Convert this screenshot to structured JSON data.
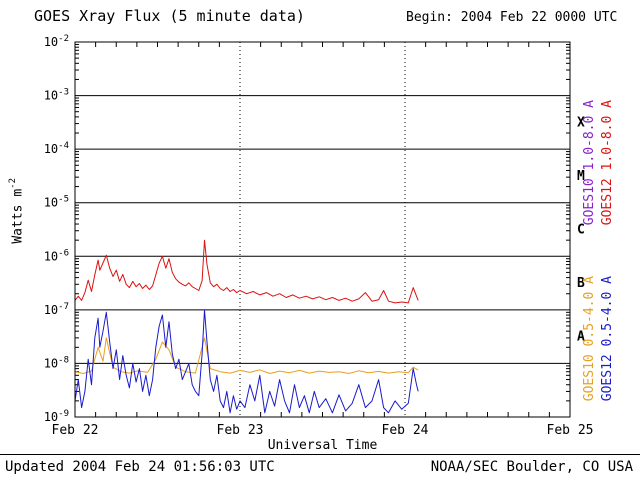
{
  "header": {
    "title": "GOES Xray Flux (5 minute data)",
    "begin_label": "Begin:  2004 Feb 22 0000 UTC"
  },
  "footer": {
    "updated": "Updated 2004 Feb 24 01:56:03 UTC",
    "source": "NOAA/SEC Boulder, CO USA"
  },
  "chart_data": {
    "type": "line",
    "title": "GOES Xray Flux (5 minute data)",
    "xlabel": "Universal Time",
    "ylabel": {
      "base": "Watts m",
      "exponent": "-2"
    },
    "x_span_days": 3,
    "x_ticks": [
      {
        "day": 0,
        "label": "Feb 22"
      },
      {
        "day": 1,
        "label": "Feb 23"
      },
      {
        "day": 2,
        "label": "Feb 24"
      },
      {
        "day": 3,
        "label": "Feb 25"
      }
    ],
    "y_axis": {
      "base": "10",
      "exponents": [
        -2,
        -3,
        -4,
        -5,
        -6,
        -7,
        -8,
        -9
      ],
      "scale": "log"
    },
    "ylim": [
      1e-09,
      0.01
    ],
    "grid": {
      "horizontal": "solid-per-decade",
      "vertical": "dotted-per-day"
    },
    "flare_classes": [
      {
        "label": "X",
        "mid_exp": -3.5
      },
      {
        "label": "M",
        "mid_exp": -4.5
      },
      {
        "label": "C",
        "mid_exp": -5.5
      },
      {
        "label": "B",
        "mid_exp": -6.5
      },
      {
        "label": "A",
        "mid_exp": -7.5
      }
    ],
    "series": [
      {
        "name": "GOES10 1.0-8.0 A",
        "color": "#8822cc",
        "points": []
      },
      {
        "name": "GOES10 0.5-4.0 A",
        "color": "#e8a020",
        "points": [
          [
            0.0,
            7e-09
          ],
          [
            0.05,
            6.5e-09
          ],
          [
            0.1,
            7.2e-09
          ],
          [
            0.14,
            2e-08
          ],
          [
            0.17,
            1.1e-08
          ],
          [
            0.19,
            3e-08
          ],
          [
            0.23,
            8.5e-09
          ],
          [
            0.28,
            7e-09
          ],
          [
            0.33,
            6.6e-09
          ],
          [
            0.38,
            7.3e-09
          ],
          [
            0.44,
            6.8e-09
          ],
          [
            0.49,
            1.2e-08
          ],
          [
            0.53,
            2.5e-08
          ],
          [
            0.57,
            1.8e-08
          ],
          [
            0.61,
            8.5e-09
          ],
          [
            0.67,
            7e-09
          ],
          [
            0.73,
            6.6e-09
          ],
          [
            0.785,
            3e-08
          ],
          [
            0.82,
            8e-09
          ],
          [
            0.88,
            7e-09
          ],
          [
            0.94,
            6.6e-09
          ],
          [
            1.0,
            7.4e-09
          ],
          [
            1.06,
            6.8e-09
          ],
          [
            1.12,
            7.6e-09
          ],
          [
            1.18,
            6.5e-09
          ],
          [
            1.24,
            7.2e-09
          ],
          [
            1.3,
            6.7e-09
          ],
          [
            1.36,
            7.4e-09
          ],
          [
            1.42,
            6.6e-09
          ],
          [
            1.48,
            7.2e-09
          ],
          [
            1.54,
            6.8e-09
          ],
          [
            1.6,
            7e-09
          ],
          [
            1.66,
            6.5e-09
          ],
          [
            1.72,
            7.3e-09
          ],
          [
            1.78,
            6.7e-09
          ],
          [
            1.84,
            7.1e-09
          ],
          [
            1.9,
            6.6e-09
          ],
          [
            1.96,
            7e-09
          ],
          [
            2.02,
            6.7e-09
          ],
          [
            2.05,
            8.5e-09
          ],
          [
            2.08,
            7.5e-09
          ]
        ]
      },
      {
        "name": "GOES12 0.5-4.0 A",
        "color": "#1a1acc",
        "points": [
          [
            0.0,
            2e-09
          ],
          [
            0.02,
            5e-09
          ],
          [
            0.04,
            1.5e-09
          ],
          [
            0.06,
            3e-09
          ],
          [
            0.08,
            1.2e-08
          ],
          [
            0.1,
            4e-09
          ],
          [
            0.12,
            3e-08
          ],
          [
            0.14,
            7e-08
          ],
          [
            0.15,
            2e-08
          ],
          [
            0.17,
            4e-08
          ],
          [
            0.19,
            9e-08
          ],
          [
            0.21,
            2.5e-08
          ],
          [
            0.23,
            8e-09
          ],
          [
            0.25,
            1.8e-08
          ],
          [
            0.27,
            5e-09
          ],
          [
            0.29,
            1.4e-08
          ],
          [
            0.31,
            6e-09
          ],
          [
            0.33,
            3.5e-09
          ],
          [
            0.35,
            1e-08
          ],
          [
            0.37,
            4.5e-09
          ],
          [
            0.39,
            8e-09
          ],
          [
            0.41,
            3e-09
          ],
          [
            0.43,
            6e-09
          ],
          [
            0.45,
            2.5e-09
          ],
          [
            0.47,
            5e-09
          ],
          [
            0.49,
            2e-08
          ],
          [
            0.51,
            5e-08
          ],
          [
            0.53,
            8e-08
          ],
          [
            0.55,
            2e-08
          ],
          [
            0.57,
            6e-08
          ],
          [
            0.59,
            1.5e-08
          ],
          [
            0.61,
            8e-09
          ],
          [
            0.63,
            1.2e-08
          ],
          [
            0.65,
            5e-09
          ],
          [
            0.67,
            7e-09
          ],
          [
            0.69,
            1e-08
          ],
          [
            0.71,
            4e-09
          ],
          [
            0.73,
            3e-09
          ],
          [
            0.75,
            2.5e-09
          ],
          [
            0.77,
            1.5e-08
          ],
          [
            0.785,
            1e-07
          ],
          [
            0.8,
            2.5e-08
          ],
          [
            0.82,
            5e-09
          ],
          [
            0.84,
            3e-09
          ],
          [
            0.86,
            6e-09
          ],
          [
            0.88,
            2e-09
          ],
          [
            0.9,
            1.5e-09
          ],
          [
            0.92,
            3e-09
          ],
          [
            0.94,
            1.2e-09
          ],
          [
            0.96,
            2.5e-09
          ],
          [
            0.98,
            1.4e-09
          ],
          [
            1.0,
            2e-09
          ],
          [
            1.03,
            1.5e-09
          ],
          [
            1.06,
            4e-09
          ],
          [
            1.09,
            2e-09
          ],
          [
            1.12,
            6e-09
          ],
          [
            1.15,
            1.2e-09
          ],
          [
            1.18,
            3e-09
          ],
          [
            1.21,
            1.6e-09
          ],
          [
            1.24,
            5e-09
          ],
          [
            1.27,
            2e-09
          ],
          [
            1.3,
            1.2e-09
          ],
          [
            1.33,
            4e-09
          ],
          [
            1.36,
            1.5e-09
          ],
          [
            1.39,
            2.5e-09
          ],
          [
            1.42,
            1.2e-09
          ],
          [
            1.45,
            3e-09
          ],
          [
            1.48,
            1.5e-09
          ],
          [
            1.52,
            2.2e-09
          ],
          [
            1.56,
            1.2e-09
          ],
          [
            1.6,
            2.6e-09
          ],
          [
            1.64,
            1.3e-09
          ],
          [
            1.68,
            1.8e-09
          ],
          [
            1.72,
            4e-09
          ],
          [
            1.76,
            1.5e-09
          ],
          [
            1.8,
            2e-09
          ],
          [
            1.84,
            5e-09
          ],
          [
            1.87,
            1.5e-09
          ],
          [
            1.9,
            1.2e-09
          ],
          [
            1.94,
            2e-09
          ],
          [
            1.98,
            1.4e-09
          ],
          [
            2.02,
            1.8e-09
          ],
          [
            2.05,
            8e-09
          ],
          [
            2.07,
            4e-09
          ],
          [
            2.08,
            3e-09
          ]
        ]
      },
      {
        "name": "GOES12 1.0-8.0 A",
        "color": "#dd1111",
        "points": [
          [
            0.0,
            1.5e-07
          ],
          [
            0.02,
            1.8e-07
          ],
          [
            0.04,
            1.5e-07
          ],
          [
            0.06,
            2.1e-07
          ],
          [
            0.08,
            3.6e-07
          ],
          [
            0.1,
            2.2e-07
          ],
          [
            0.12,
            4.5e-07
          ],
          [
            0.14,
            8.5e-07
          ],
          [
            0.15,
            5.5e-07
          ],
          [
            0.17,
            7.5e-07
          ],
          [
            0.19,
            1.05e-06
          ],
          [
            0.21,
            6e-07
          ],
          [
            0.23,
            4.2e-07
          ],
          [
            0.25,
            5.5e-07
          ],
          [
            0.27,
            3.4e-07
          ],
          [
            0.29,
            4.6e-07
          ],
          [
            0.31,
            3e-07
          ],
          [
            0.33,
            2.6e-07
          ],
          [
            0.35,
            3.4e-07
          ],
          [
            0.37,
            2.7e-07
          ],
          [
            0.39,
            3.1e-07
          ],
          [
            0.41,
            2.5e-07
          ],
          [
            0.43,
            2.9e-07
          ],
          [
            0.45,
            2.4e-07
          ],
          [
            0.47,
            2.8e-07
          ],
          [
            0.49,
            4.5e-07
          ],
          [
            0.51,
            7.5e-07
          ],
          [
            0.53,
            1e-06
          ],
          [
            0.55,
            6e-07
          ],
          [
            0.57,
            9e-07
          ],
          [
            0.59,
            5e-07
          ],
          [
            0.61,
            3.8e-07
          ],
          [
            0.63,
            3.3e-07
          ],
          [
            0.65,
            3e-07
          ],
          [
            0.67,
            2.8e-07
          ],
          [
            0.69,
            3.2e-07
          ],
          [
            0.71,
            2.7e-07
          ],
          [
            0.73,
            2.5e-07
          ],
          [
            0.75,
            2.3e-07
          ],
          [
            0.77,
            3.5e-07
          ],
          [
            0.785,
            2e-06
          ],
          [
            0.8,
            7e-07
          ],
          [
            0.82,
            3.2e-07
          ],
          [
            0.84,
            2.7e-07
          ],
          [
            0.86,
            3e-07
          ],
          [
            0.88,
            2.5e-07
          ],
          [
            0.9,
            2.3e-07
          ],
          [
            0.92,
            2.6e-07
          ],
          [
            0.94,
            2.2e-07
          ],
          [
            0.96,
            2.4e-07
          ],
          [
            0.98,
            2.1e-07
          ],
          [
            1.0,
            2.3e-07
          ],
          [
            1.04,
            2e-07
          ],
          [
            1.08,
            2.2e-07
          ],
          [
            1.12,
            1.9e-07
          ],
          [
            1.16,
            2.1e-07
          ],
          [
            1.2,
            1.8e-07
          ],
          [
            1.24,
            2e-07
          ],
          [
            1.28,
            1.7e-07
          ],
          [
            1.32,
            1.9e-07
          ],
          [
            1.36,
            1.65e-07
          ],
          [
            1.4,
            1.8e-07
          ],
          [
            1.44,
            1.6e-07
          ],
          [
            1.48,
            1.75e-07
          ],
          [
            1.52,
            1.55e-07
          ],
          [
            1.56,
            1.7e-07
          ],
          [
            1.6,
            1.5e-07
          ],
          [
            1.64,
            1.65e-07
          ],
          [
            1.68,
            1.45e-07
          ],
          [
            1.72,
            1.6e-07
          ],
          [
            1.76,
            2.1e-07
          ],
          [
            1.8,
            1.45e-07
          ],
          [
            1.84,
            1.55e-07
          ],
          [
            1.87,
            2.3e-07
          ],
          [
            1.9,
            1.45e-07
          ],
          [
            1.94,
            1.35e-07
          ],
          [
            1.98,
            1.4e-07
          ],
          [
            2.02,
            1.35e-07
          ],
          [
            2.05,
            2.6e-07
          ],
          [
            2.07,
            1.8e-07
          ],
          [
            2.08,
            1.5e-07
          ]
        ]
      }
    ]
  }
}
